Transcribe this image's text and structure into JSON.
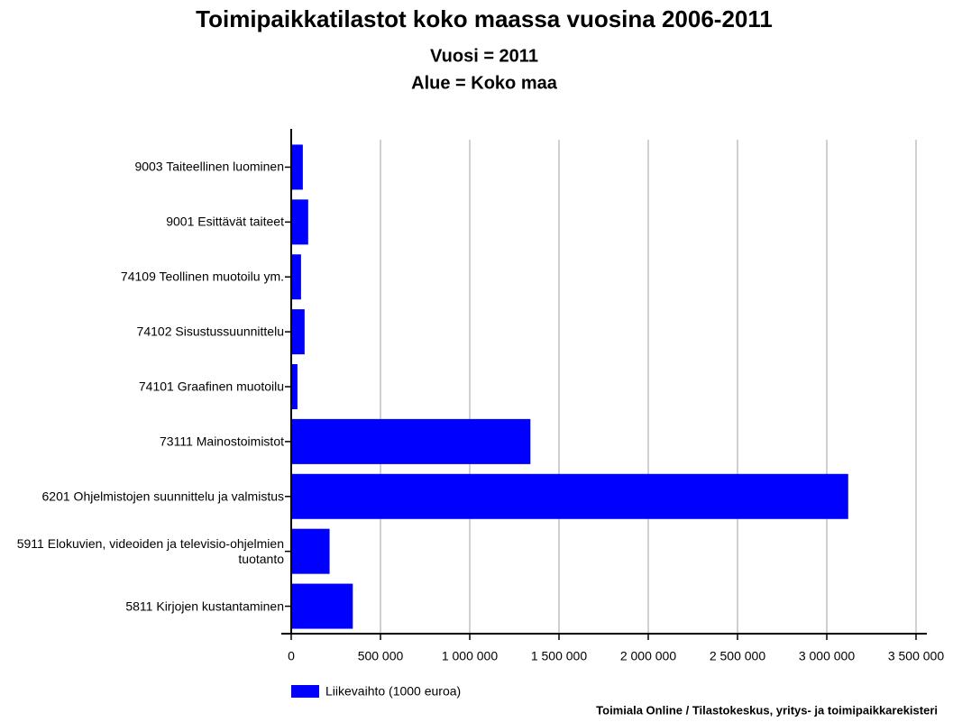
{
  "chart_data": {
    "type": "hbar",
    "title": "Toimipaikkatilastot koko maassa vuosina 2006-2011",
    "subtitles": [
      "Vuosi = 2011",
      "Alue = Koko maa"
    ],
    "categories": [
      "9003 Taiteellinen luominen",
      "9001 Esittävät taiteet",
      "74109 Teollinen muotoilu ym.",
      "74102 Sisustussuunnittelu",
      "74101 Graafinen muotoilu",
      "73111 Mainostoimistot",
      "6201 Ohjelmistojen suunnittelu ja valmistus",
      "5911 Elokuvien, videoiden ja televisio-ohjelmien tuotanto",
      "5811 Kirjojen kustantaminen"
    ],
    "series": [
      {
        "name": "Liikevaihto (1000 euroa)",
        "color": "#0000ff",
        "values": [
          65000,
          95000,
          55000,
          75000,
          35000,
          1340000,
          3120000,
          215000,
          345000
        ]
      }
    ],
    "xlim": [
      0,
      3500000
    ],
    "xticks": [
      0,
      {
        "value": 500000,
        "label": "500 000"
      },
      {
        "value": 1000000,
        "label": "1 000 000"
      },
      {
        "value": 1500000,
        "label": "1 500 000"
      },
      {
        "value": 2000000,
        "label": "2 000 000"
      },
      {
        "value": 2500000,
        "label": "2 500 000"
      },
      {
        "value": 3000000,
        "label": "3 000 000"
      },
      {
        "value": 3500000,
        "label": "3 500 000"
      }
    ],
    "grid": true,
    "source": "Toimiala Online / Tilastokeskus, yritys- ja toimipaikkarekisteri"
  }
}
